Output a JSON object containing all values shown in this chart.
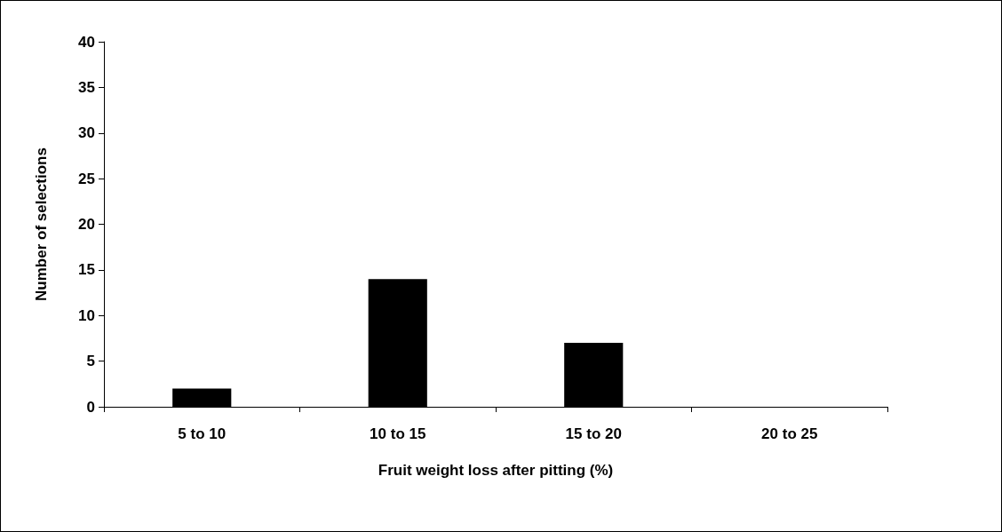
{
  "chart_data": {
    "type": "bar",
    "xlabel": "Fruit weight loss after pitting (%)",
    "ylabel": "Number of selections",
    "categories": [
      "5 to 10",
      "10 to 15",
      "15 to 20",
      "20 to 25"
    ],
    "values": [
      2,
      14,
      7,
      0
    ],
    "color": "#000000",
    "ylim": [
      0,
      40
    ],
    "yticks": [
      0,
      5,
      10,
      15,
      20,
      25,
      30,
      35,
      40
    ]
  }
}
